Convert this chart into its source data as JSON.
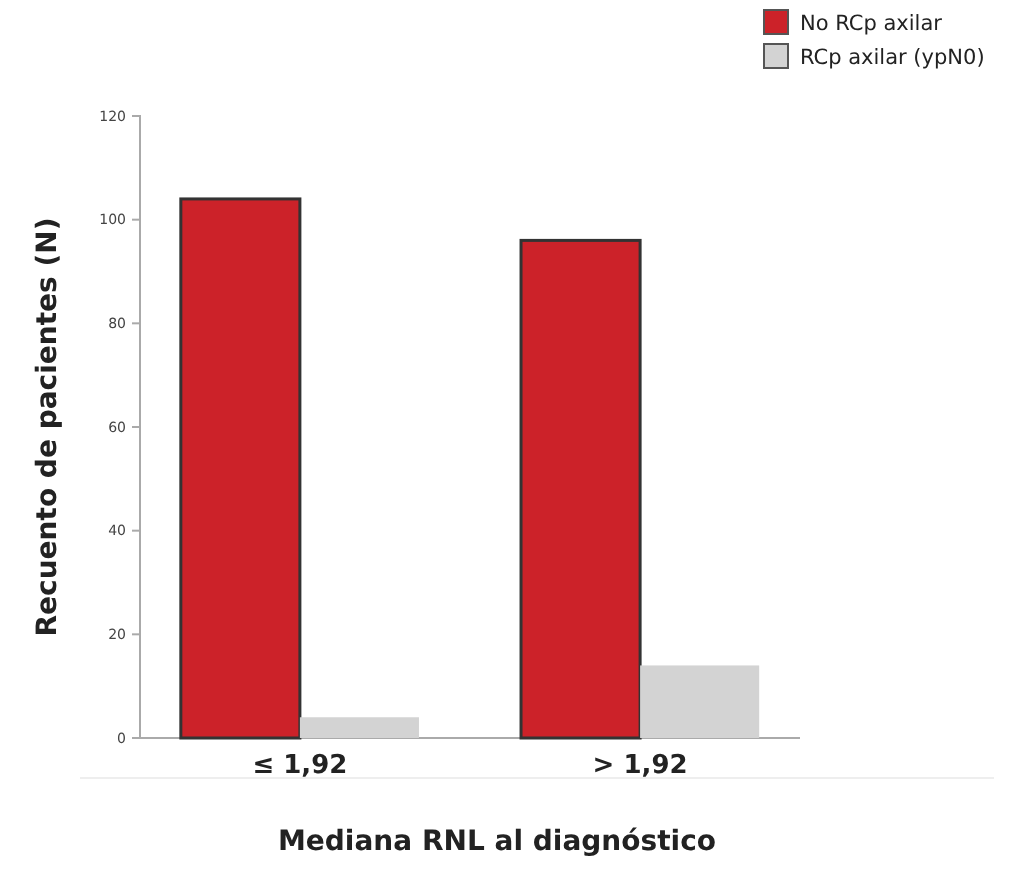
{
  "chart_data": {
    "type": "bar",
    "xlabel": "Mediana RNL al diagnóstico",
    "ylabel": "Recuento de pacientes (N)",
    "categories": [
      "≤ 1,92",
      "> 1,92"
    ],
    "series": [
      {
        "name": "No RCp axilar",
        "color": "#cc2229",
        "values": [
          104,
          96
        ]
      },
      {
        "name": "RCp axilar (ypN0)",
        "color": "#d3d3d3",
        "values": [
          4,
          14
        ]
      }
    ],
    "ylim": [
      0,
      120
    ],
    "yticks": [
      0,
      20,
      40,
      60,
      80,
      100,
      120
    ],
    "grid": false,
    "legend": "top right"
  }
}
